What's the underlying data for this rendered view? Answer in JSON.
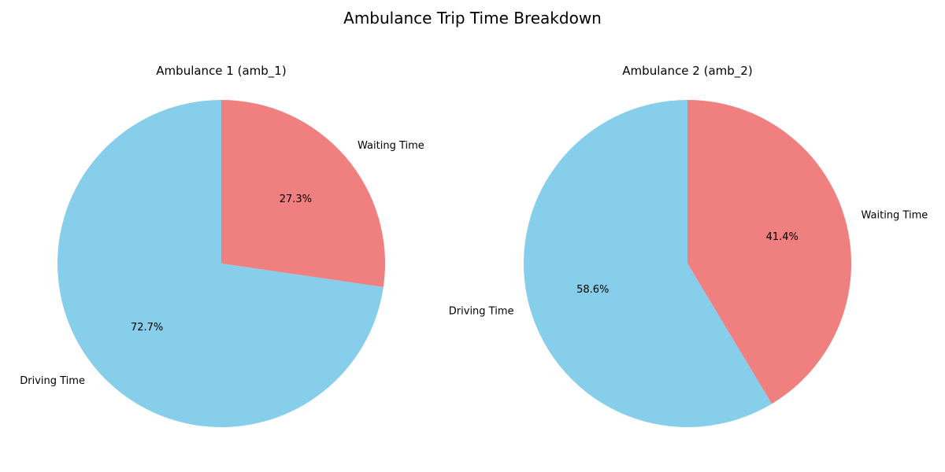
{
  "figure": {
    "title": "Ambulance Trip Time Breakdown"
  },
  "chart_data": [
    {
      "type": "pie",
      "title": "Ambulance 1 (amb_1)",
      "labels": [
        "Waiting Time",
        "Driving Time"
      ],
      "values": [
        27.3,
        72.7
      ],
      "percent_labels": [
        "27.3%",
        "72.7%"
      ],
      "colors": [
        "#f08080",
        "#87ceeb"
      ],
      "start_angle_deg": 90,
      "direction": "clockwise"
    },
    {
      "type": "pie",
      "title": "Ambulance 2 (amb_2)",
      "labels": [
        "Waiting Time",
        "Driving Time"
      ],
      "values": [
        41.4,
        58.6
      ],
      "percent_labels": [
        "41.4%",
        "58.6%"
      ],
      "colors": [
        "#f08080",
        "#87ceeb"
      ],
      "start_angle_deg": 90,
      "direction": "clockwise"
    }
  ]
}
